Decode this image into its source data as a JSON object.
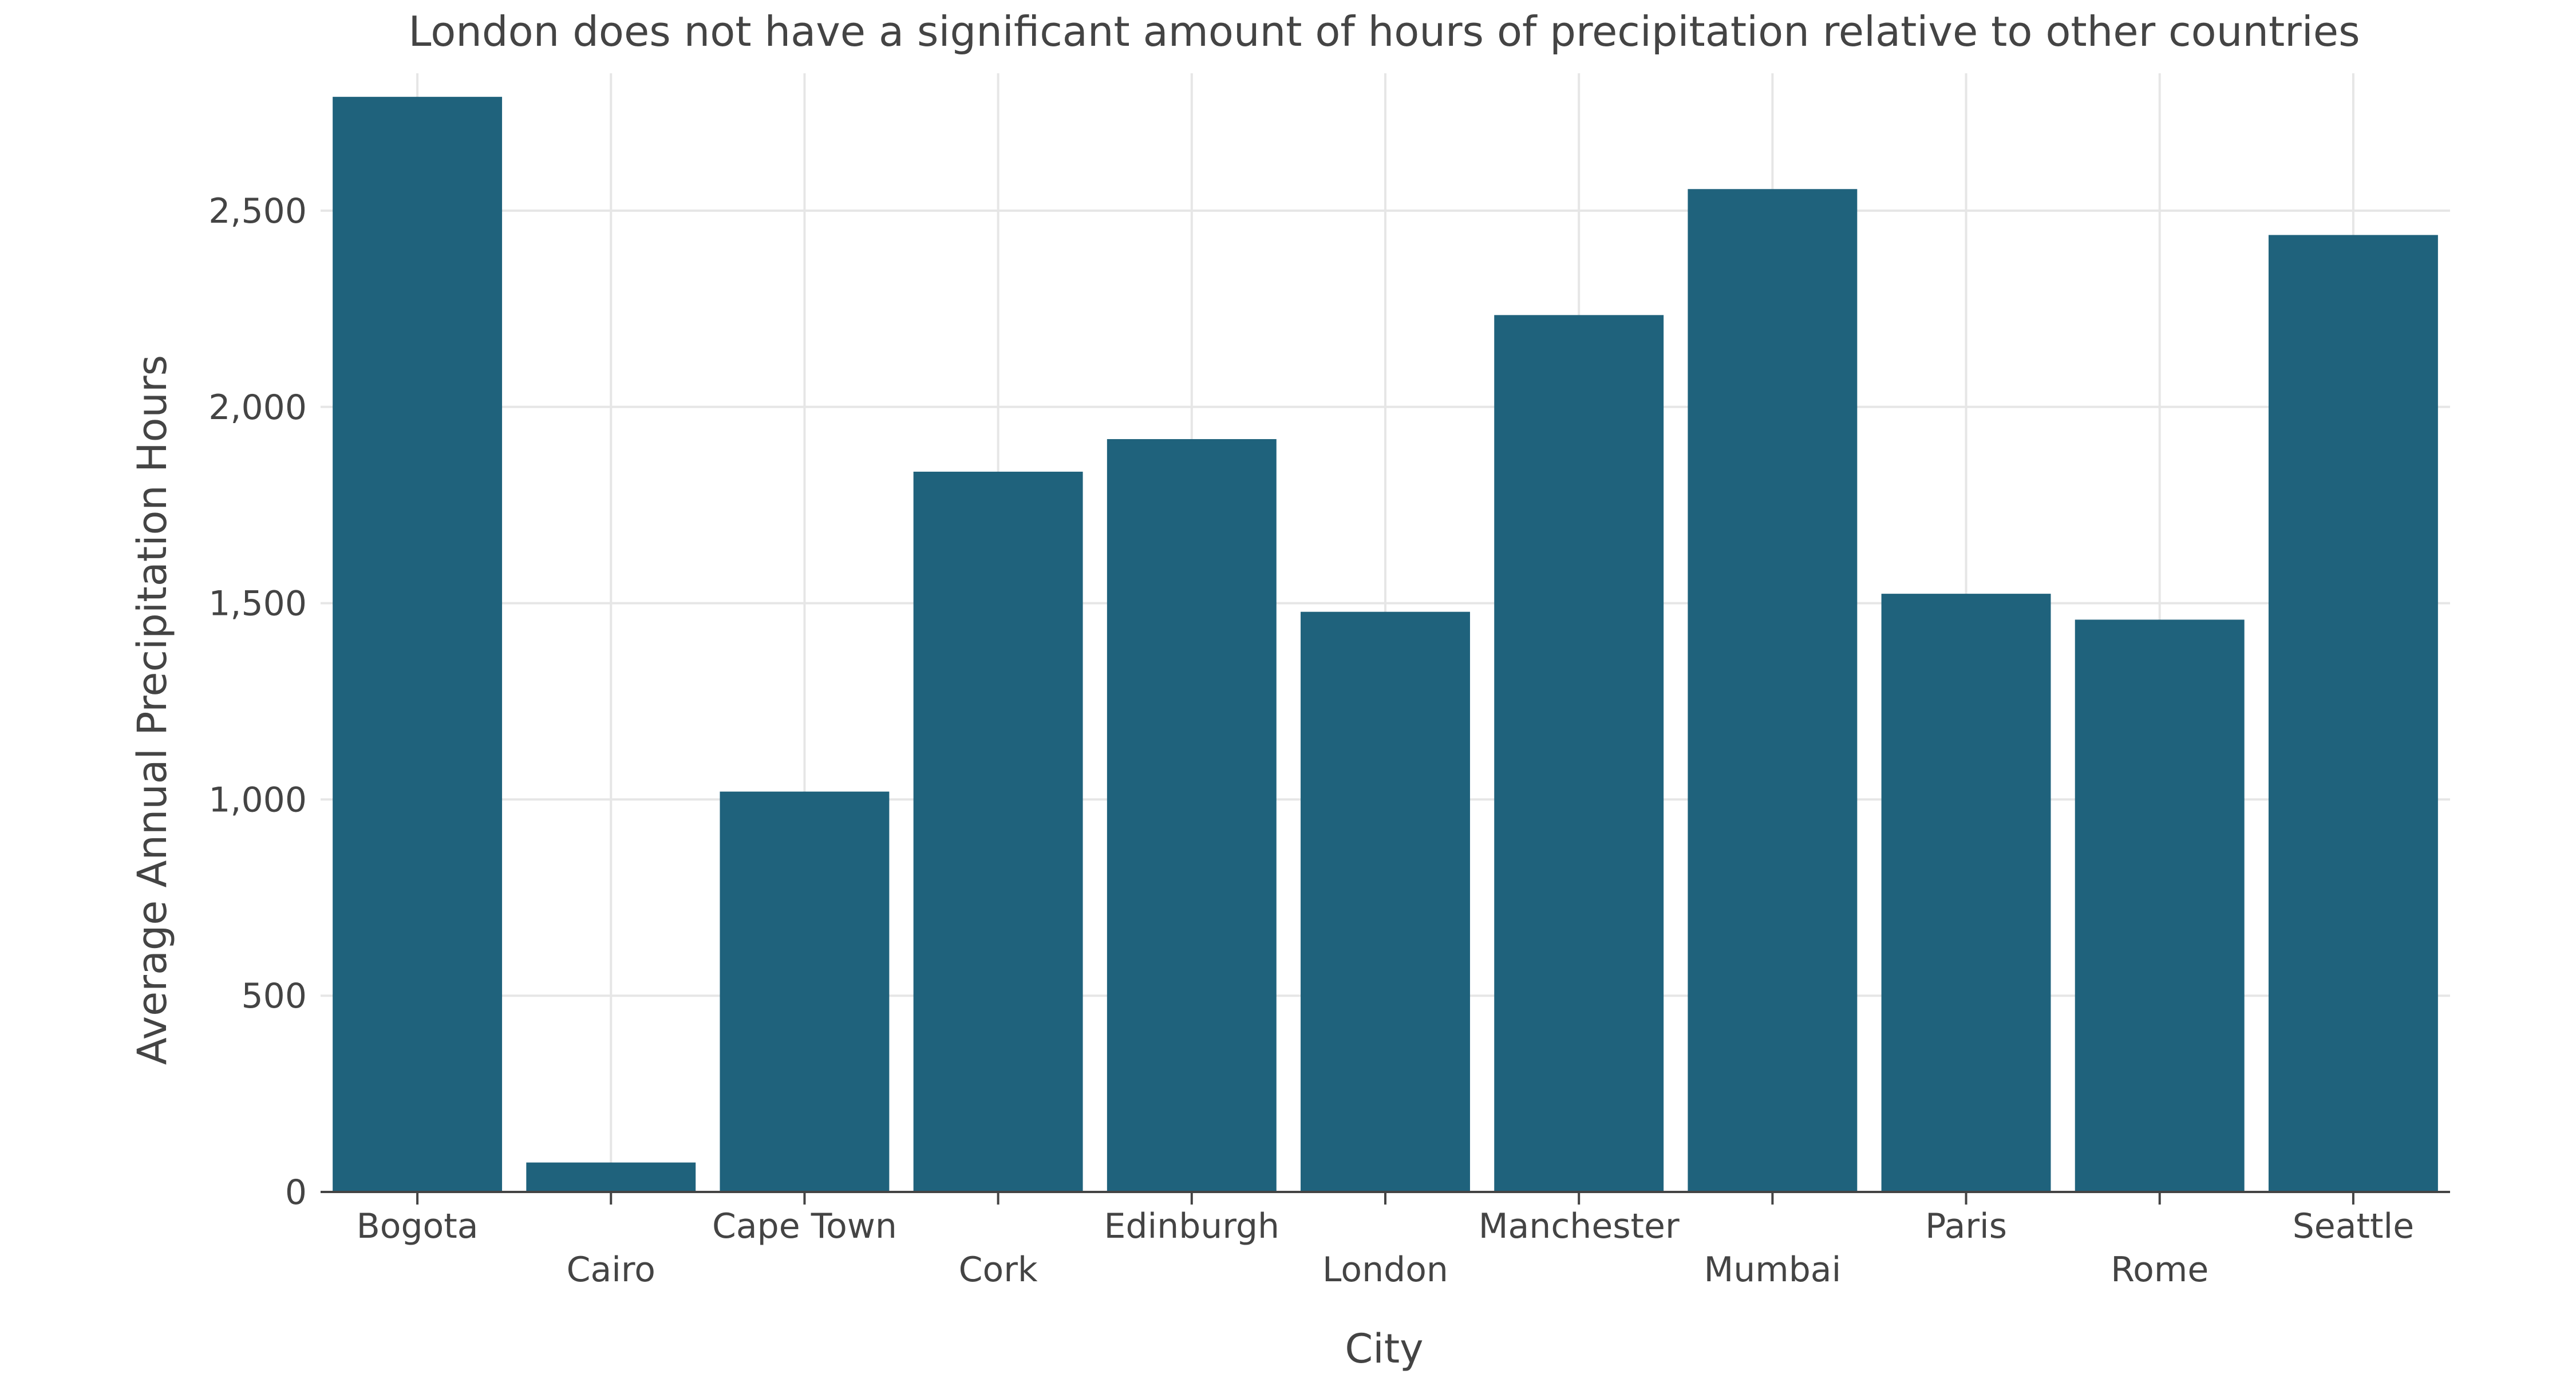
{
  "chart_data": {
    "type": "bar",
    "title": "London does not have a significant amount of hours of precipitation relative to other countries",
    "xlabel": "City",
    "ylabel": "Average Annual Precipitation Hours",
    "categories": [
      "Bogota",
      "Cairo",
      "Cape Town",
      "Cork",
      "Edinburgh",
      "London",
      "Manchester",
      "Mumbai",
      "Paris",
      "Rome",
      "Seattle"
    ],
    "values": [
      2790,
      75,
      1020,
      1835,
      1918,
      1478,
      2234,
      2555,
      1524,
      1458,
      2438
    ],
    "ylim": [
      0,
      2850
    ],
    "yticks": [
      0,
      500,
      1000,
      1500,
      2000,
      2500
    ],
    "ytick_labels": [
      "0",
      "500",
      "1,000",
      "1,500",
      "2,000",
      "2,500"
    ],
    "grid": true,
    "bar_color": "#1f627c"
  }
}
